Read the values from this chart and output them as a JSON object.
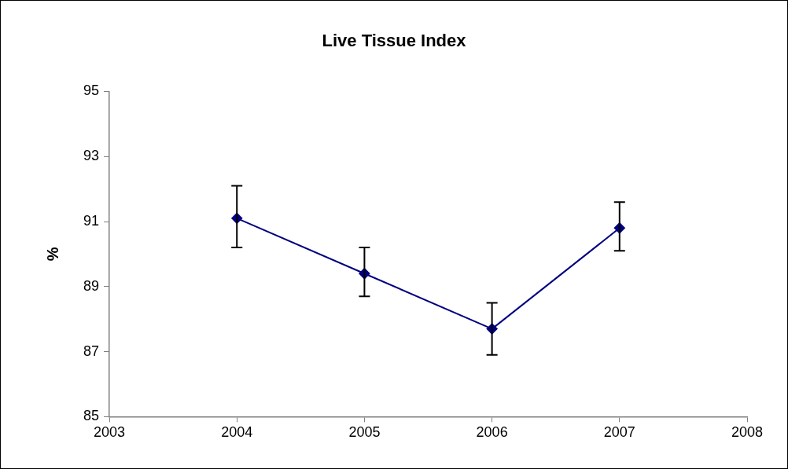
{
  "chart_data": {
    "type": "line",
    "title": "Live Tissue Index",
    "ylabel": "%",
    "x": [
      2004,
      2005,
      2006,
      2007
    ],
    "series": [
      {
        "color": "#000080",
        "values": [
          91.1,
          89.4,
          87.7,
          90.8
        ],
        "errors": [
          [
            90.2,
            92.1
          ],
          [
            88.7,
            90.2
          ],
          [
            86.9,
            88.5
          ],
          [
            90.1,
            91.6
          ]
        ]
      }
    ],
    "xlim": [
      2003,
      2008
    ],
    "xticks": [
      2003,
      2004,
      2005,
      2006,
      2007,
      2008
    ],
    "ylim": [
      85,
      95
    ],
    "yticks": [
      85,
      87,
      89,
      91,
      93,
      95
    ],
    "grid": false,
    "legend": false,
    "marker": "diamond",
    "line_style": "solid"
  }
}
